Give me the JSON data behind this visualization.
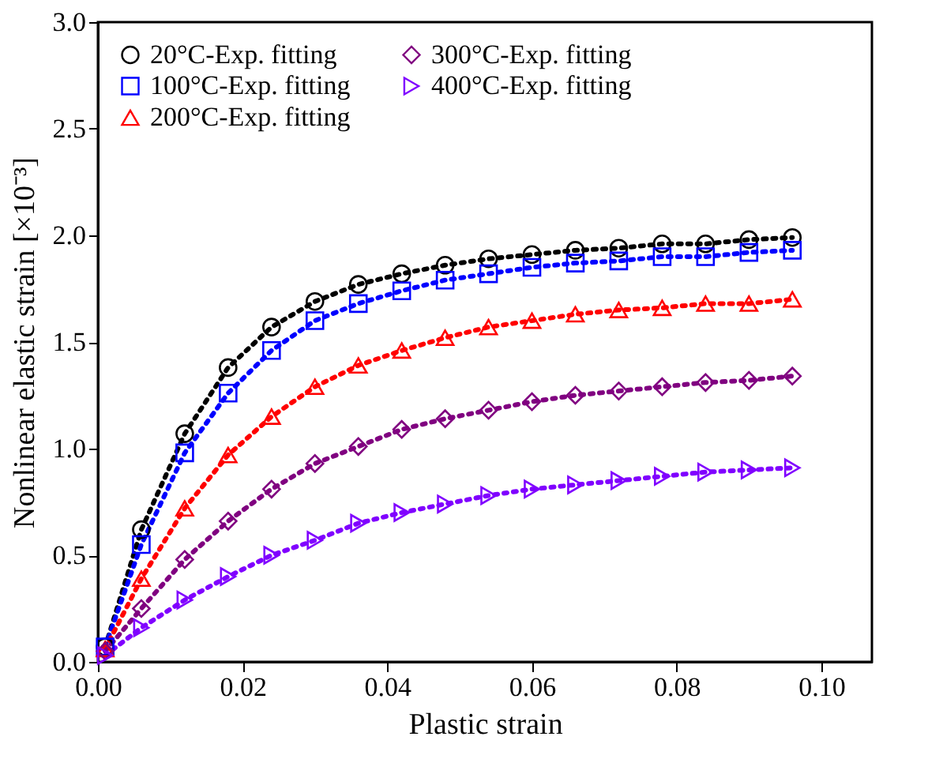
{
  "chart_data": {
    "type": "line",
    "xlabel": "Plastic strain",
    "ylabel": "Nonlinear elastic strain [×10⁻³]",
    "x": [
      0.001,
      0.006,
      0.012,
      0.018,
      0.024,
      0.03,
      0.036,
      0.042,
      0.048,
      0.054,
      0.06,
      0.066,
      0.072,
      0.078,
      0.084,
      0.09,
      0.096
    ],
    "xlim": [
      0,
      0.107
    ],
    "ylim": [
      0,
      3.0
    ],
    "xticks": [
      {
        "value": 0,
        "label": "0.00"
      },
      {
        "value": 0.02,
        "label": "0.02"
      },
      {
        "value": 0.04,
        "label": "0.04"
      },
      {
        "value": 0.06,
        "label": "0.06"
      },
      {
        "value": 0.08,
        "label": "0.08"
      },
      {
        "value": 0.1,
        "label": "0.10"
      }
    ],
    "yticks": [
      {
        "value": 0,
        "label": "0.0"
      },
      {
        "value": 0.5,
        "label": "0.5"
      },
      {
        "value": 1,
        "label": "1.0"
      },
      {
        "value": 1.5,
        "label": "1.5"
      },
      {
        "value": 2,
        "label": "2.0"
      },
      {
        "value": 2.5,
        "label": "2.5"
      },
      {
        "value": 3,
        "label": "3.0"
      }
    ],
    "grid": false,
    "legend": "top left",
    "line_style": "dotted",
    "series": [
      {
        "name": "20°C-Exp. fitting",
        "color": "#000000",
        "marker": "circle",
        "values": [
          0.07,
          0.62,
          1.07,
          1.38,
          1.57,
          1.69,
          1.77,
          1.82,
          1.86,
          1.89,
          1.91,
          1.93,
          1.94,
          1.96,
          1.96,
          1.98,
          1.99
        ]
      },
      {
        "name": "100°C-Exp. fitting",
        "color": "#0000ff",
        "marker": "square",
        "values": [
          0.07,
          0.55,
          0.98,
          1.26,
          1.46,
          1.6,
          1.68,
          1.74,
          1.79,
          1.82,
          1.85,
          1.87,
          1.88,
          1.9,
          1.9,
          1.92,
          1.93
        ]
      },
      {
        "name": "200°C-Exp. fitting",
        "color": "#ff0000",
        "marker": "triangle",
        "values": [
          0.06,
          0.39,
          0.72,
          0.97,
          1.15,
          1.29,
          1.39,
          1.46,
          1.52,
          1.57,
          1.6,
          1.63,
          1.65,
          1.66,
          1.68,
          1.68,
          1.7
        ]
      },
      {
        "name": "300°C-Exp. fitting",
        "color": "#800080",
        "marker": "diamond",
        "values": [
          0.05,
          0.25,
          0.48,
          0.66,
          0.81,
          0.93,
          1.01,
          1.09,
          1.14,
          1.18,
          1.22,
          1.25,
          1.27,
          1.29,
          1.31,
          1.32,
          1.34
        ]
      },
      {
        "name": "400°C-Exp. fitting",
        "color": "#8000ff",
        "marker": "triangle-right",
        "values": [
          0.03,
          0.16,
          0.29,
          0.4,
          0.5,
          0.57,
          0.65,
          0.7,
          0.74,
          0.78,
          0.81,
          0.83,
          0.85,
          0.87,
          0.89,
          0.9,
          0.91
        ]
      }
    ]
  }
}
